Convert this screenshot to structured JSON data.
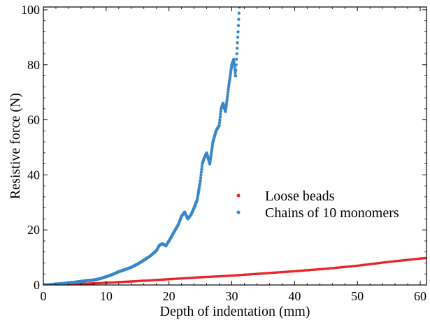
{
  "chart_data": {
    "type": "scatter",
    "xlabel": "Depth of indentation (mm)",
    "ylabel": "Resistive force (N)",
    "xlim": [
      0,
      61
    ],
    "ylim": [
      0,
      101
    ],
    "x_ticks": [
      0,
      10,
      20,
      30,
      40,
      50,
      60
    ],
    "y_ticks": [
      0,
      20,
      40,
      60,
      80,
      100
    ],
    "x_tick_labels": [
      "0",
      "10",
      "20",
      "30",
      "40",
      "50",
      "60"
    ],
    "y_tick_labels": [
      "0",
      "20",
      "40",
      "60",
      "80",
      "100"
    ],
    "grid": false,
    "legend_position": "center-right",
    "series": [
      {
        "name": "Loose beads",
        "color": "#e8252a",
        "x": [
          0,
          5,
          10,
          15,
          20,
          25,
          30,
          35,
          40,
          45,
          50,
          55,
          60,
          61
        ],
        "y": [
          0,
          0.3,
          0.8,
          1.4,
          2.1,
          2.8,
          3.4,
          4.2,
          5.0,
          5.9,
          7.0,
          8.4,
          9.6,
          9.8
        ]
      },
      {
        "name": "Chains of 10 monomers",
        "color": "#3a87c6",
        "x": [
          0,
          1,
          2,
          3,
          4,
          5,
          6,
          7,
          8,
          9,
          10,
          11,
          12,
          13,
          14,
          15,
          16,
          17,
          18,
          18.5,
          19,
          19.5,
          20,
          20.5,
          21,
          21.5,
          22,
          22.5,
          23,
          23.5,
          24,
          24.5,
          25,
          25.3,
          25.6,
          26,
          26.5,
          27,
          27.5,
          28,
          28.3,
          28.6,
          29,
          29.5,
          30,
          30.3,
          30.6,
          31,
          31.2
        ],
        "y": [
          0,
          0.1,
          0.3,
          0.5,
          0.8,
          1.0,
          1.3,
          1.6,
          1.8,
          2.3,
          3.0,
          3.8,
          4.8,
          5.6,
          6.4,
          7.6,
          9.0,
          10.5,
          12.5,
          14.5,
          15.0,
          14.2,
          16.0,
          18.0,
          20.0,
          22.0,
          25.0,
          26.5,
          24.0,
          25.5,
          28.0,
          31.0,
          38.0,
          44.0,
          46.0,
          48.0,
          44.0,
          52.0,
          56.0,
          58.0,
          64.0,
          66.0,
          63.0,
          72.0,
          80.0,
          82.0,
          76.0,
          92.0,
          101.0
        ]
      }
    ]
  }
}
